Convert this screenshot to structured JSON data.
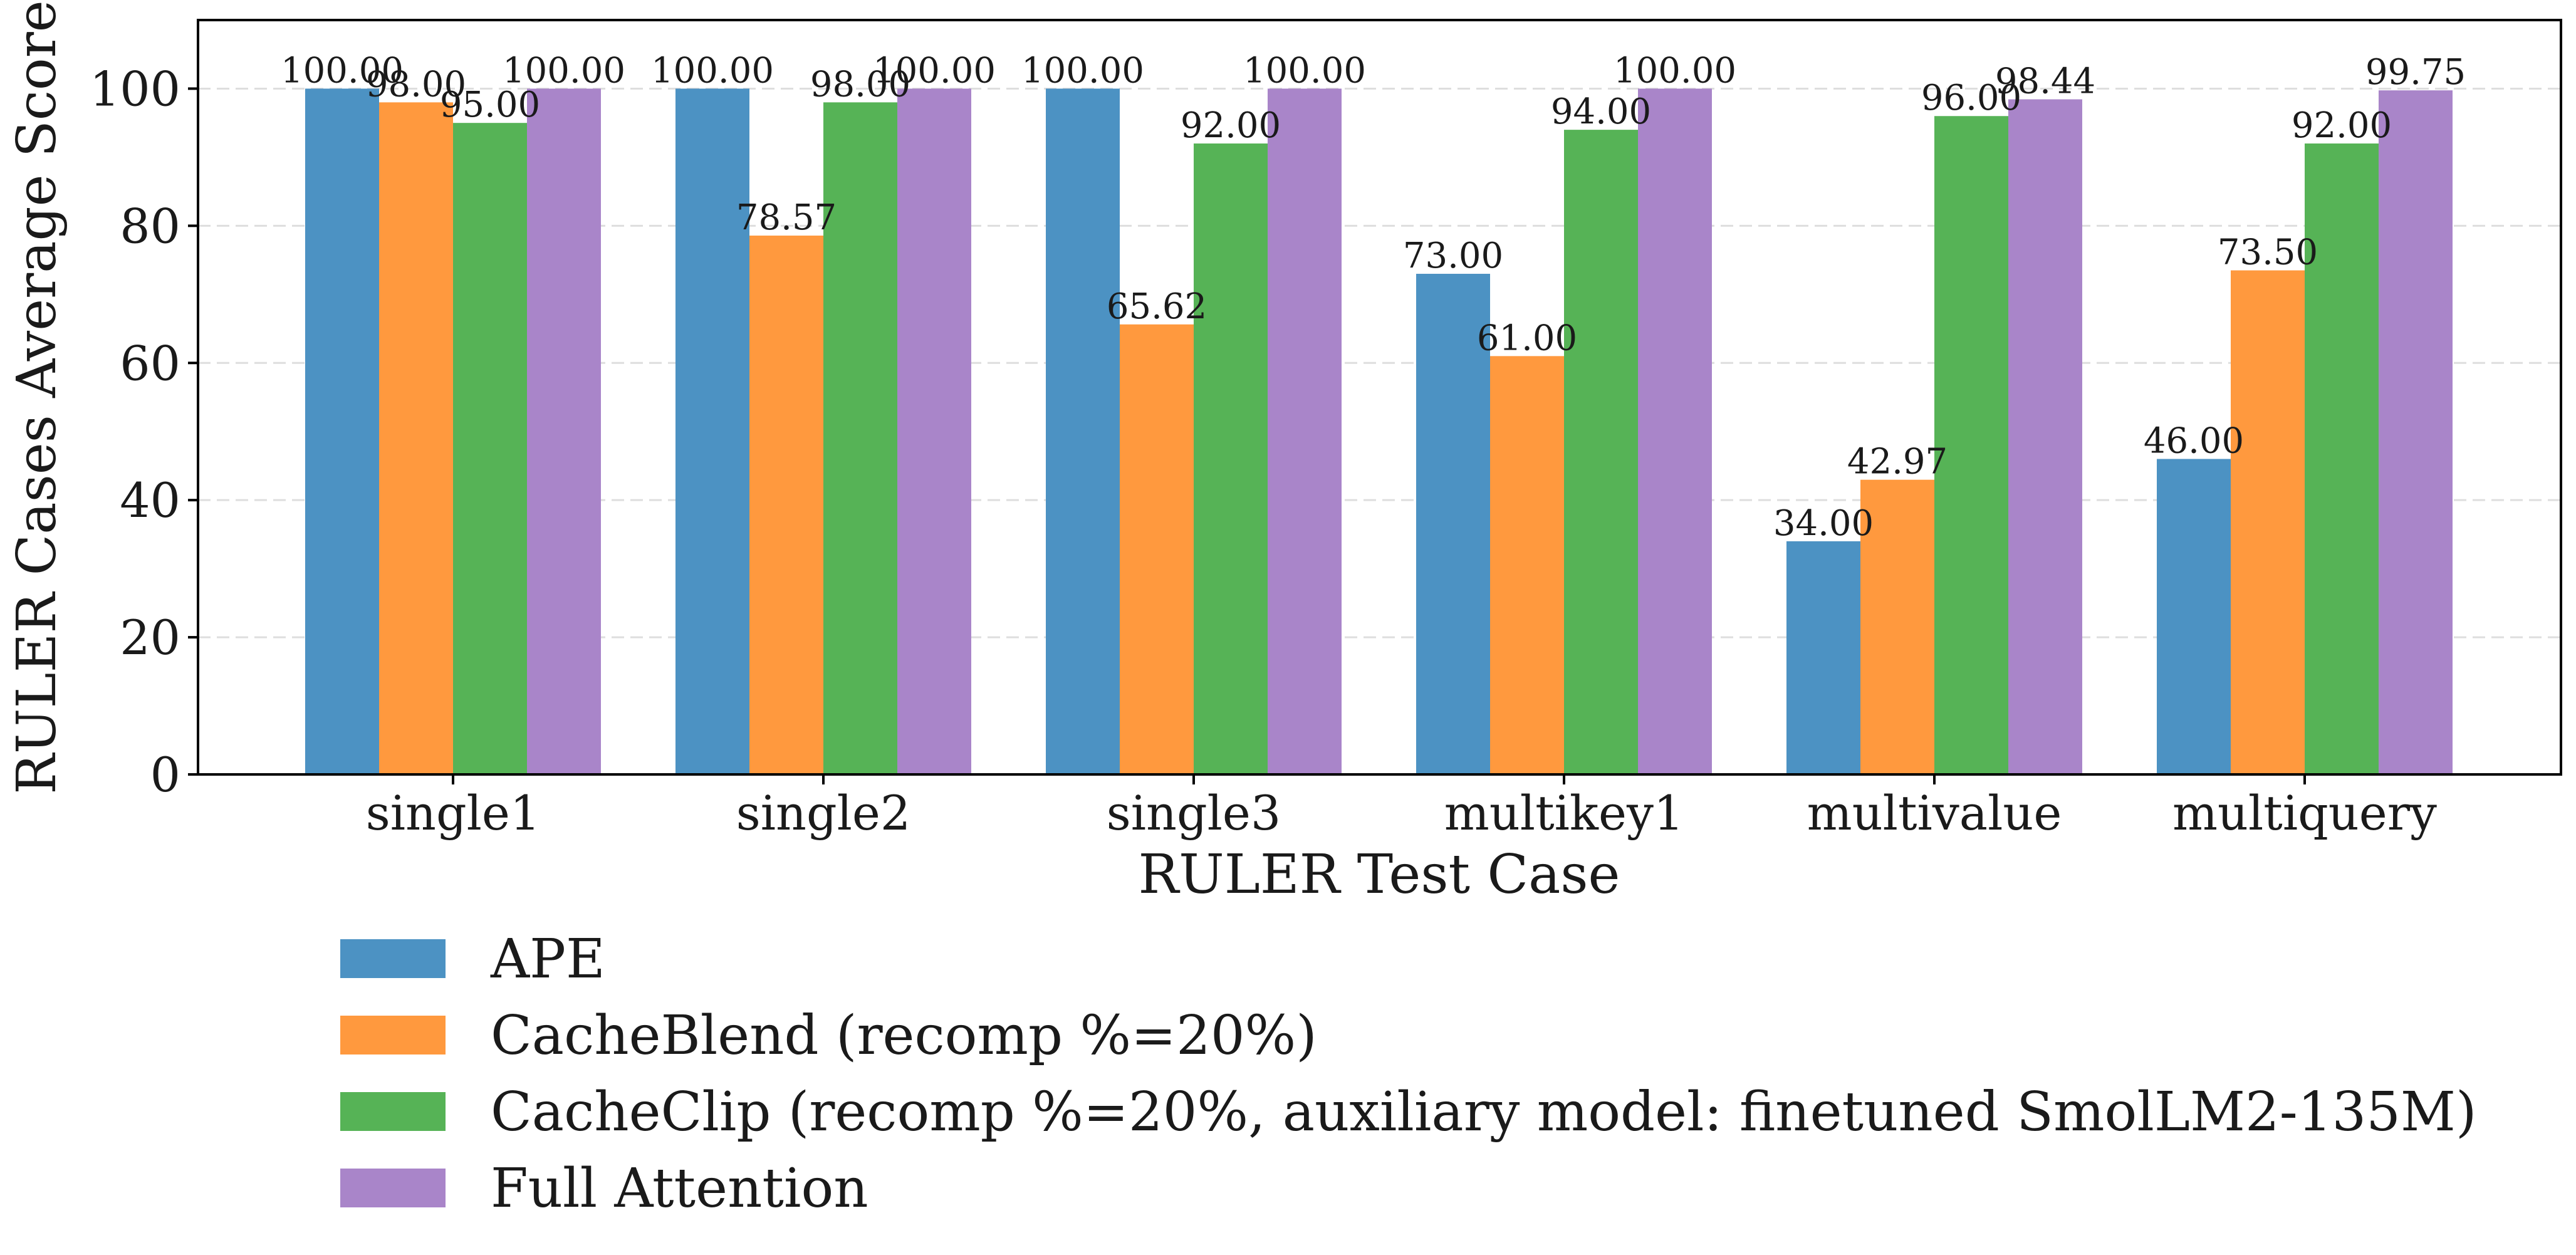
{
  "chart_data": {
    "type": "bar",
    "title": "",
    "xlabel": "RULER Test Case",
    "ylabel": "RULER Cases Average Score",
    "ylim": [
      0,
      110
    ],
    "yticks": [
      0,
      20,
      40,
      60,
      80,
      100
    ],
    "ytick_labels": [
      "0",
      "20",
      "40",
      "60",
      "80",
      "100"
    ],
    "grid": "y-dashed",
    "legend_position": "below",
    "categories": [
      "single1",
      "single2",
      "single3",
      "multikey1",
      "multivalue",
      "multiquery"
    ],
    "series": [
      {
        "name": "APE",
        "color": "#4c92c3",
        "values": [
          100.0,
          100.0,
          100.0,
          73.0,
          34.0,
          46.0
        ],
        "labels": [
          "100.00",
          "100.00",
          "100.00",
          "73.00",
          "34.00",
          "46.00"
        ]
      },
      {
        "name": "CacheBlend (recomp %=20%)",
        "color": "#ff993e",
        "values": [
          98.0,
          78.57,
          65.62,
          61.0,
          42.97,
          73.5
        ],
        "labels": [
          "98.00",
          "78.57",
          "65.62",
          "61.00",
          "42.97",
          "73.50"
        ]
      },
      {
        "name": "CacheClip (recomp %=20%, auxiliary model: finetuned SmolLM2-135M)",
        "color": "#56b356",
        "values": [
          95.0,
          98.0,
          92.0,
          94.0,
          96.0,
          92.0
        ],
        "labels": [
          "95.00",
          "98.00",
          "92.00",
          "94.00",
          "96.00",
          "92.00"
        ]
      },
      {
        "name": "Full Attention",
        "color": "#a985c9",
        "values": [
          100.0,
          100.0,
          100.0,
          100.0,
          98.44,
          99.75
        ],
        "labels": [
          "100.00",
          "100.00",
          "100.00",
          "100.00",
          "98.44",
          "99.75"
        ]
      }
    ]
  }
}
